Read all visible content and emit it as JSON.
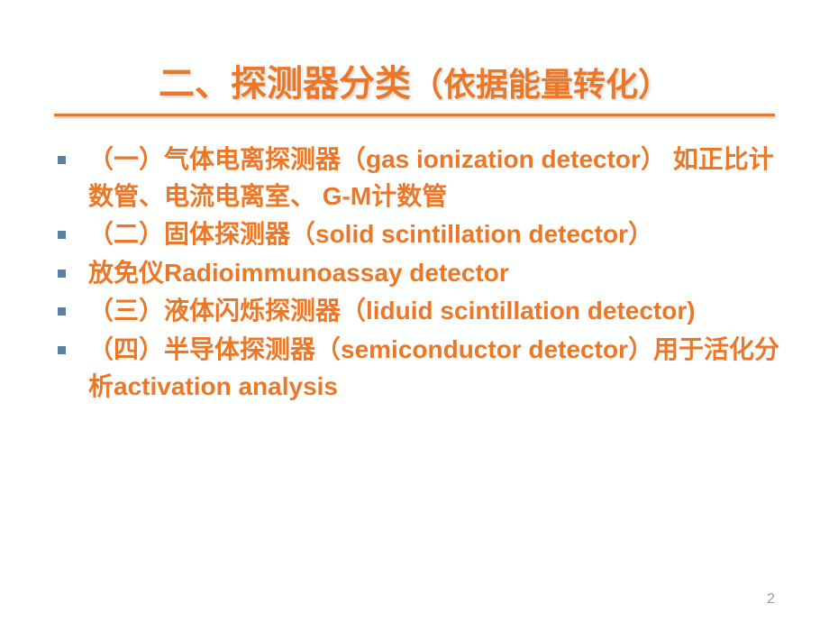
{
  "title_main": "二、探测器分类",
  "title_sub": "（依据能量转化）",
  "bullets": [
    "（一）气体电离探测器（gas ionization detector）  如正比计数管、电流电离室、 G-M计数管",
    "（二）固体探测器（solid scintillation detector）",
    " 放免仪Radioimmunoassay detector",
    "（三）液体闪烁探测器（liduid scintillation detector)",
    "（四）半导体探测器（semiconductor detector）用于活化分析activation analysis"
  ],
  "page_number": "2",
  "colors": {
    "accent": "#eb7828",
    "bullet_square": "#5b7fa5",
    "page_num": "#9a9a9a",
    "background": "#ffffff"
  },
  "typography": {
    "title_fontsize": 40,
    "title_sub_fontsize": 36,
    "body_fontsize": 28,
    "body_weight": "bold",
    "font_family": "Microsoft YaHei"
  }
}
